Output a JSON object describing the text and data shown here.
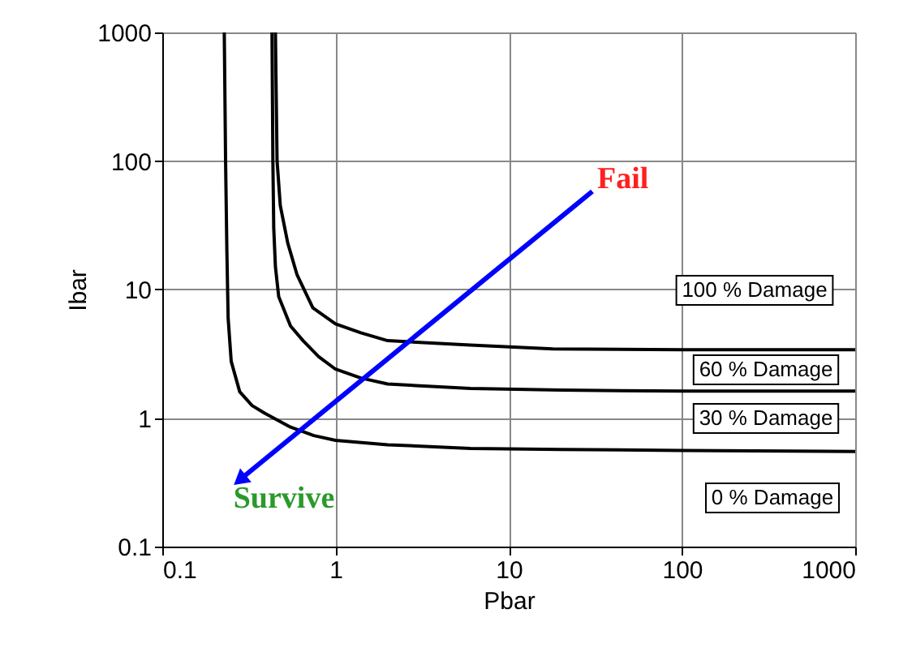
{
  "chart_data": {
    "type": "line",
    "xlabel": "Pbar",
    "ylabel": "Ibar",
    "log": "xy",
    "grid": true,
    "marker": "none",
    "line_style": "solid",
    "xlim": [
      0.1,
      1000
    ],
    "ylim": [
      0.1,
      1000
    ],
    "xticks": [
      0.1,
      1,
      10,
      100,
      1000
    ],
    "yticks": [
      0.1,
      1,
      10,
      100,
      1000
    ],
    "series": [
      {
        "color": "#000000",
        "x": [
          0.228,
          0.232,
          0.236,
          0.24,
          0.25,
          0.28,
          0.33,
          0.39,
          0.55,
          0.75,
          1.0,
          2.0,
          6,
          20,
          100,
          1000
        ],
        "values": [
          1000,
          100,
          20,
          6,
          2.76,
          1.6,
          1.25,
          1.09,
          0.85,
          0.73,
          0.67,
          0.62,
          0.58,
          0.57,
          0.56,
          0.55
        ]
      },
      {
        "color": "#000000",
        "x": [
          0.43,
          0.435,
          0.44,
          0.45,
          0.47,
          0.55,
          0.65,
          0.8,
          1.0,
          1.4,
          2.0,
          6,
          20,
          100,
          1000
        ],
        "values": [
          1000,
          100,
          30,
          15,
          8.8,
          5.2,
          4.0,
          3.0,
          2.4,
          2.05,
          1.84,
          1.7,
          1.65,
          1.62,
          1.62
        ]
      },
      {
        "color": "#000000",
        "x": [
          0.45,
          0.455,
          0.46,
          0.48,
          0.53,
          0.6,
          0.74,
          1.0,
          1.4,
          2.0,
          6,
          18,
          100,
          1000
        ],
        "values": [
          1000,
          300,
          100,
          45,
          23,
          13,
          7.2,
          5.4,
          4.6,
          4.0,
          3.7,
          3.45,
          3.4,
          3.4
        ]
      }
    ],
    "annotations": [
      "Fail",
      "Survive",
      "100 % Damage",
      "60 % Damage",
      "30 % Damage",
      "0 % Damage"
    ]
  }
}
